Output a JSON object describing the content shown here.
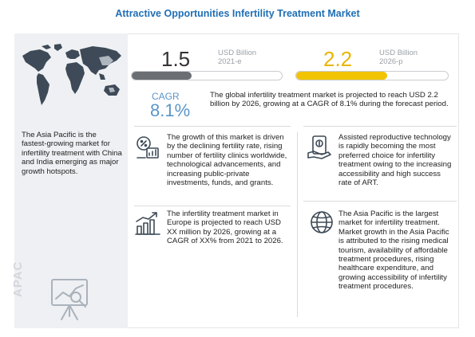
{
  "title": "Attractive Opportunities Infertility Treatment Market",
  "apac": {
    "label": "APAC",
    "description": "The Asia Pacific is the fastest-growing market for infertility treatment with China and India emerging as major growth hotspots."
  },
  "market": {
    "value_2021": "1.5",
    "unit_2021": "USD Billion",
    "year_2021": "2021-e",
    "value_2026": "2.2",
    "unit_2026": "USD Billion",
    "year_2026": "2026-p",
    "cagr_label": "CAGR",
    "cagr_value": "8.1%",
    "summary": "The global infertility treatment market is projected to reach USD 2.2 billion by 2026, growing at a CAGR of 8.1% during the forecast period.",
    "bar_fill_2021_fraction": 0.4,
    "bar_fill_2026_fraction": 0.6,
    "colors": {
      "bar_2021": "#6b6e72",
      "bar_2026": "#f2c300",
      "cagr": "#5b95c9",
      "title": "#1f6fb5"
    }
  },
  "blocks": {
    "growth": "The growth of this market is driven by the declining fertility rate, rising number of fertility clinics worldwide, technological advancements, and increasing public-private investments, funds, and grants.",
    "europe": "The infertility treatment market in Europe is projected to reach USD XX million by 2026, growing at a CAGR of XX% from 2021 to 2026.",
    "art": "Assisted reproductive technology is rapidly becoming the most preferred choice for infertility treatment owing to the increasing accessibility and high success rate of ART.",
    "asia": "The Asia Pacific is the largest market for infertility treatment. Market growth in the Asia Pacific is attributed to the rising medical tourism, availability of affordable treatment procedures, rising healthcare expenditure, and growing accessibility of infertility treatment procedures."
  },
  "icons": {
    "world_map": "world-map-icon",
    "presentation": "presentation-board-icon",
    "percent_chart": "percent-chart-icon",
    "bar_growth": "bar-growth-icon",
    "money": "money-icon",
    "globe": "globe-icon"
  }
}
